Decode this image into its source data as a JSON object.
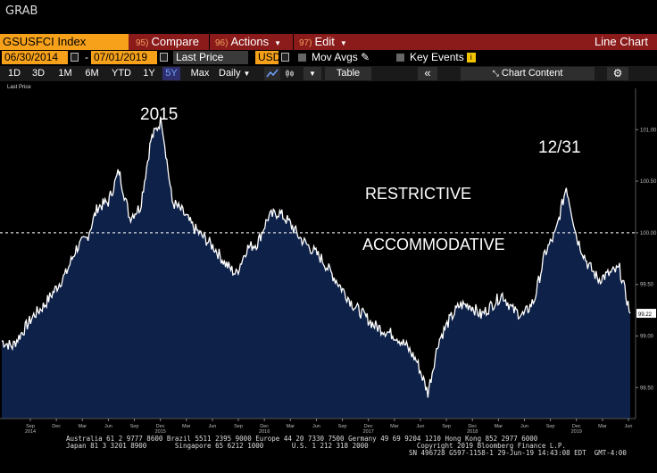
{
  "window": {
    "title": "GRAB"
  },
  "toolbar": {
    "ticker": "GSUSFCI Index",
    "buttons": [
      {
        "num": "95)",
        "label": "Compare"
      },
      {
        "num": "96)",
        "label": "Actions"
      },
      {
        "num": "97)",
        "label": "Edit"
      }
    ],
    "chart_type": "Line Chart"
  },
  "range": {
    "start_date": "06/30/2014",
    "separator": "-",
    "end_date": "07/01/2019",
    "price_field": "Last Price",
    "currency": "USD",
    "mov_avgs": "Mov Avgs",
    "key_events": "Key Events",
    "key_events_icon": "i"
  },
  "periods": {
    "items": [
      "1D",
      "3D",
      "1M",
      "6M",
      "YTD",
      "1Y",
      "5Y",
      "Max"
    ],
    "active": "5Y",
    "frequency": "Daily",
    "table_label": "Table",
    "collapse_label": "«",
    "chart_content_label": "Chart Content"
  },
  "chart": {
    "legend_label": "Last Price",
    "annotations": {
      "a2015": "2015",
      "a1231": "12/31",
      "restrictive": "RESTRICTIVE",
      "accommodative": "ACCOMMODATIVE"
    },
    "last_value_label": "99.22"
  },
  "chart_data": {
    "type": "area",
    "title": "",
    "xlabel": "",
    "ylabel": "",
    "ylim": [
      98.2,
      101.4
    ],
    "yticks": [
      "98.50",
      "99.00",
      "99.50",
      "100.00",
      "100.50",
      "101.00"
    ],
    "reference_line": 100.0,
    "grid": false,
    "fill_color": "#0e2148",
    "line_color": "#ffffff",
    "x_ticks": [
      {
        "label": "Sep",
        "year": "2014"
      },
      {
        "label": "Dec"
      },
      {
        "label": "Mar"
      },
      {
        "label": "Jun"
      },
      {
        "label": "Sep"
      },
      {
        "label": "Dec",
        "year": "2015"
      },
      {
        "label": "Mar"
      },
      {
        "label": "Jun"
      },
      {
        "label": "Sep"
      },
      {
        "label": "Dec",
        "year": "2016"
      },
      {
        "label": "Mar"
      },
      {
        "label": "Jun"
      },
      {
        "label": "Sep"
      },
      {
        "label": "Dec",
        "year": "2017"
      },
      {
        "label": "Mar"
      },
      {
        "label": "Jun"
      },
      {
        "label": "Sep"
      },
      {
        "label": "Dec",
        "year": "2018"
      },
      {
        "label": "Mar"
      },
      {
        "label": "Jun"
      },
      {
        "label": "Sep"
      },
      {
        "label": "Dec",
        "year": "2019"
      },
      {
        "label": "Mar"
      },
      {
        "label": "Jun"
      }
    ],
    "series": [
      {
        "x": [
          "2014-07",
          "2014-08",
          "2014-09",
          "2014-10",
          "2014-11",
          "2014-12",
          "2015-01",
          "2015-02",
          "2015-03",
          "2015-04",
          "2015-05",
          "2015-06",
          "2015-07",
          "2015-08",
          "2015-09",
          "2015-10",
          "2015-11",
          "2015-12",
          "2016-01",
          "2016-02",
          "2016-03",
          "2016-04",
          "2016-05",
          "2016-06",
          "2016-07",
          "2016-08",
          "2016-09",
          "2016-10",
          "2016-11",
          "2016-12",
          "2017-01",
          "2017-02",
          "2017-03",
          "2017-04",
          "2017-05",
          "2017-06",
          "2017-07",
          "2017-08",
          "2017-09",
          "2017-10",
          "2017-11",
          "2017-12",
          "2018-01",
          "2018-02",
          "2018-03",
          "2018-04",
          "2018-05",
          "2018-06",
          "2018-07",
          "2018-08",
          "2018-09",
          "2018-10",
          "2018-11",
          "2018-12",
          "2019-01",
          "2019-02",
          "2019-03",
          "2019-04",
          "2019-05",
          "2019-06"
        ],
        "values": [
          98.95,
          98.9,
          99.05,
          99.2,
          99.3,
          99.45,
          99.6,
          99.85,
          99.95,
          100.25,
          100.3,
          100.6,
          100.15,
          100.25,
          100.9,
          101.1,
          100.3,
          100.2,
          100.05,
          99.95,
          99.85,
          99.7,
          99.6,
          99.85,
          99.9,
          100.15,
          100.2,
          100.1,
          99.95,
          99.85,
          99.75,
          99.6,
          99.45,
          99.3,
          99.2,
          99.1,
          99.05,
          99.0,
          98.9,
          98.75,
          98.45,
          98.95,
          99.15,
          99.3,
          99.3,
          99.2,
          99.3,
          99.4,
          99.25,
          99.2,
          99.35,
          99.8,
          100.0,
          100.45,
          99.95,
          99.7,
          99.55,
          99.6,
          99.65,
          99.22
        ]
      }
    ]
  }
}
